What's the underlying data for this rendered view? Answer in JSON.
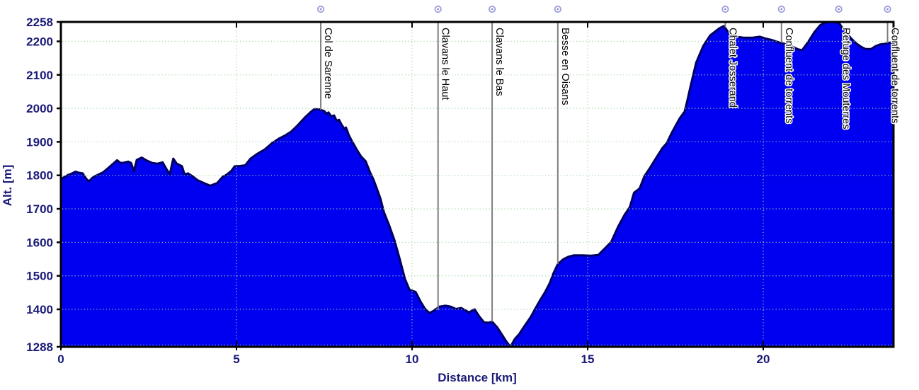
{
  "chart_data": {
    "type": "area",
    "title": "",
    "xlabel": "Distance [km]",
    "ylabel": "Alt. [m]",
    "xlim": [
      0,
      23.71
    ],
    "ylim": [
      1288,
      2258
    ],
    "xticks": [
      0,
      5,
      10,
      15,
      20
    ],
    "yticks": [
      1288,
      1400,
      1500,
      1600,
      1700,
      1800,
      1900,
      2000,
      2100,
      2200,
      2258
    ],
    "grid": "dotted",
    "legend": "none",
    "series": [
      {
        "name": "elevation-profile",
        "points": [
          [
            0.0,
            1789
          ],
          [
            0.1,
            1795
          ],
          [
            0.2,
            1801
          ],
          [
            0.3,
            1805
          ],
          [
            0.42,
            1811
          ],
          [
            0.5,
            1808
          ],
          [
            0.62,
            1806
          ],
          [
            0.72,
            1790
          ],
          [
            0.8,
            1782
          ],
          [
            0.9,
            1793
          ],
          [
            1.0,
            1799
          ],
          [
            1.1,
            1804
          ],
          [
            1.2,
            1809
          ],
          [
            1.35,
            1822
          ],
          [
            1.5,
            1836
          ],
          [
            1.6,
            1845
          ],
          [
            1.7,
            1837
          ],
          [
            1.8,
            1838
          ],
          [
            1.92,
            1841
          ],
          [
            2.0,
            1837
          ],
          [
            2.08,
            1812
          ],
          [
            2.16,
            1846
          ],
          [
            2.3,
            1853
          ],
          [
            2.45,
            1844
          ],
          [
            2.6,
            1837
          ],
          [
            2.75,
            1835
          ],
          [
            2.9,
            1839
          ],
          [
            3.0,
            1820
          ],
          [
            3.1,
            1803
          ],
          [
            3.2,
            1850
          ],
          [
            3.3,
            1835
          ],
          [
            3.45,
            1827
          ],
          [
            3.52,
            1803
          ],
          [
            3.62,
            1806
          ],
          [
            3.75,
            1797
          ],
          [
            3.9,
            1785
          ],
          [
            4.05,
            1778
          ],
          [
            4.25,
            1769
          ],
          [
            4.45,
            1777
          ],
          [
            4.6,
            1795
          ],
          [
            4.72,
            1802
          ],
          [
            4.85,
            1813
          ],
          [
            4.95,
            1827
          ],
          [
            5.1,
            1828
          ],
          [
            5.25,
            1830
          ],
          [
            5.4,
            1850
          ],
          [
            5.6,
            1865
          ],
          [
            5.8,
            1877
          ],
          [
            6.0,
            1895
          ],
          [
            6.2,
            1909
          ],
          [
            6.4,
            1920
          ],
          [
            6.55,
            1930
          ],
          [
            6.75,
            1950
          ],
          [
            6.95,
            1973
          ],
          [
            7.1,
            1988
          ],
          [
            7.22,
            1998
          ],
          [
            7.35,
            1997
          ],
          [
            7.42,
            1995
          ],
          [
            7.5,
            1992
          ],
          [
            7.56,
            1984
          ],
          [
            7.62,
            1988
          ],
          [
            7.7,
            1976
          ],
          [
            7.78,
            1979
          ],
          [
            7.85,
            1963
          ],
          [
            7.92,
            1966
          ],
          [
            8.0,
            1950
          ],
          [
            8.08,
            1938
          ],
          [
            8.12,
            1943
          ],
          [
            8.2,
            1920
          ],
          [
            8.3,
            1900
          ],
          [
            8.42,
            1878
          ],
          [
            8.55,
            1856
          ],
          [
            8.68,
            1842
          ],
          [
            8.8,
            1810
          ],
          [
            8.9,
            1788
          ],
          [
            9.0,
            1760
          ],
          [
            9.1,
            1730
          ],
          [
            9.2,
            1690
          ],
          [
            9.35,
            1650
          ],
          [
            9.5,
            1606
          ],
          [
            9.65,
            1550
          ],
          [
            9.8,
            1490
          ],
          [
            9.93,
            1458
          ],
          [
            10.1,
            1452
          ],
          [
            10.25,
            1422
          ],
          [
            10.38,
            1400
          ],
          [
            10.5,
            1389
          ],
          [
            10.62,
            1396
          ],
          [
            10.78,
            1408
          ],
          [
            10.95,
            1411
          ],
          [
            11.1,
            1408
          ],
          [
            11.25,
            1401
          ],
          [
            11.4,
            1404
          ],
          [
            11.62,
            1391
          ],
          [
            11.78,
            1400
          ],
          [
            11.92,
            1378
          ],
          [
            12.05,
            1361
          ],
          [
            12.18,
            1360
          ],
          [
            12.28,
            1363
          ],
          [
            12.42,
            1347
          ],
          [
            12.55,
            1326
          ],
          [
            12.68,
            1305
          ],
          [
            12.8,
            1288
          ],
          [
            12.93,
            1312
          ],
          [
            13.05,
            1326
          ],
          [
            13.2,
            1350
          ],
          [
            13.38,
            1377
          ],
          [
            13.52,
            1404
          ],
          [
            13.65,
            1428
          ],
          [
            13.78,
            1450
          ],
          [
            13.92,
            1478
          ],
          [
            14.02,
            1506
          ],
          [
            14.15,
            1535
          ],
          [
            14.3,
            1549
          ],
          [
            14.45,
            1557
          ],
          [
            14.6,
            1561
          ],
          [
            14.85,
            1561
          ],
          [
            15.1,
            1560
          ],
          [
            15.3,
            1562
          ],
          [
            15.5,
            1583
          ],
          [
            15.67,
            1601
          ],
          [
            15.87,
            1647
          ],
          [
            16.05,
            1682
          ],
          [
            16.2,
            1705
          ],
          [
            16.32,
            1748
          ],
          [
            16.48,
            1761
          ],
          [
            16.62,
            1798
          ],
          [
            16.78,
            1823
          ],
          [
            16.95,
            1852
          ],
          [
            17.12,
            1880
          ],
          [
            17.25,
            1896
          ],
          [
            17.42,
            1932
          ],
          [
            17.62,
            1970
          ],
          [
            17.76,
            1990
          ],
          [
            17.83,
            2020
          ],
          [
            17.95,
            2075
          ],
          [
            18.09,
            2137
          ],
          [
            18.29,
            2186
          ],
          [
            18.49,
            2218
          ],
          [
            18.75,
            2239
          ],
          [
            18.88,
            2246
          ],
          [
            19.04,
            2222
          ],
          [
            19.24,
            2214
          ],
          [
            19.44,
            2211
          ],
          [
            19.7,
            2211
          ],
          [
            19.9,
            2214
          ],
          [
            20.05,
            2209
          ],
          [
            20.25,
            2204
          ],
          [
            20.45,
            2197
          ],
          [
            20.6,
            2193
          ],
          [
            20.79,
            2186
          ],
          [
            21.0,
            2176
          ],
          [
            21.11,
            2174
          ],
          [
            21.29,
            2200
          ],
          [
            21.46,
            2228
          ],
          [
            21.62,
            2248
          ],
          [
            21.76,
            2256
          ],
          [
            21.85,
            2258
          ],
          [
            22.0,
            2258
          ],
          [
            22.1,
            2256
          ],
          [
            22.16,
            2255
          ],
          [
            22.26,
            2239
          ],
          [
            22.4,
            2221
          ],
          [
            22.52,
            2207
          ],
          [
            22.66,
            2193
          ],
          [
            22.8,
            2183
          ],
          [
            22.92,
            2177
          ],
          [
            23.07,
            2177
          ],
          [
            23.2,
            2186
          ],
          [
            23.33,
            2191
          ],
          [
            23.47,
            2193
          ],
          [
            23.6,
            2196
          ],
          [
            23.71,
            2199
          ]
        ]
      }
    ],
    "waypoints": [
      {
        "label": "Col de Sarenne",
        "km": 7.4,
        "alt": 1996
      },
      {
        "label": "Clavans le Haut",
        "km": 10.74,
        "alt": 1398
      },
      {
        "label": "Clavans le Bas",
        "km": 12.28,
        "alt": 1363
      },
      {
        "label": "Besse en Oisans",
        "km": 14.15,
        "alt": 1535
      },
      {
        "label": "Chalet Josserand",
        "km": 18.92,
        "alt": 2242
      },
      {
        "label": "Confluent de torrents",
        "km": 20.52,
        "alt": 2196
      },
      {
        "label": "Refuge des Mouterres",
        "km": 22.15,
        "alt": 2255
      },
      {
        "label": "Confluent de torrents",
        "km": 23.54,
        "alt": 2195
      }
    ],
    "colors": {
      "area_fill": "#0000f0",
      "area_line": "#000060",
      "axis_text": "#1a1a78",
      "grid": "#a4d8a4",
      "frame": "#000000",
      "waypoint_line": "#7f7f7f",
      "waypoint_text": "#000000",
      "marker_ring": "#9d9dde",
      "marker_dot": "#8c8cd0",
      "background": "#ffffff"
    }
  }
}
